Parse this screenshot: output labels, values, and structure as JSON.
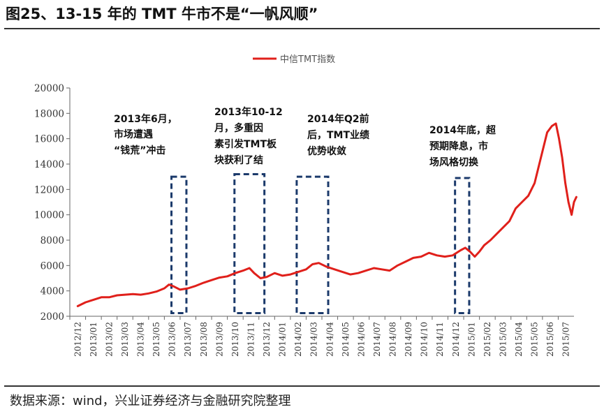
{
  "figure": {
    "title": "图25、13-15 年的 TMT 牛市不是“一帆风顺”",
    "source": "数据来源：wind，兴业证券经济与金融研究院整理"
  },
  "colors": {
    "line": "#e0201b",
    "box": "#1b3a6b"
  },
  "chart_data": {
    "type": "line",
    "title": "",
    "xlabel": "",
    "ylabel": "",
    "ylim": [
      2000,
      20000
    ],
    "yticks": [
      2000,
      4000,
      6000,
      8000,
      10000,
      12000,
      14000,
      16000,
      18000,
      20000
    ],
    "grid": false,
    "legend_position": "top-center",
    "categories": [
      "2012/12",
      "2013/01",
      "2013/02",
      "2013/03",
      "2013/04",
      "2013/05",
      "2013/06",
      "2013/07",
      "2013/08",
      "2013/09",
      "2013/10",
      "2013/11",
      "2013/12",
      "2014/01",
      "2014/02",
      "2014/03",
      "2014/04",
      "2014/05",
      "2014/06",
      "2014/07",
      "2014/08",
      "2014/09",
      "2014/10",
      "2014/11",
      "2014/12",
      "2015/01",
      "2015/02",
      "2015/03",
      "2015/04",
      "2015/05",
      "2015/06",
      "2015/07"
    ],
    "series": [
      {
        "name": "中信TMT指数",
        "x": [
          0,
          0.5,
          1,
          1.5,
          2,
          2.5,
          3,
          3.5,
          4,
          4.5,
          5,
          5.5,
          5.8,
          6.1,
          6.5,
          7,
          7.5,
          8,
          8.5,
          9,
          9.5,
          10,
          10.5,
          10.9,
          11.2,
          11.6,
          12,
          12.5,
          13,
          13.5,
          14,
          14.5,
          14.9,
          15.3,
          15.8,
          16.3,
          16.8,
          17.3,
          17.8,
          18.3,
          18.8,
          19.3,
          19.8,
          20.3,
          20.8,
          21.3,
          21.8,
          22.3,
          22.8,
          23.3,
          23.8,
          24.3,
          24.6,
          24.9,
          25.2,
          25.5,
          25.8,
          26.2,
          26.6,
          27,
          27.4,
          27.8,
          28.2,
          28.6,
          29,
          29.4,
          29.8,
          30.1,
          30.35,
          30.55,
          30.75,
          30.95,
          31.15,
          31.35,
          31.5,
          31.65
        ],
        "values": [
          2800,
          3100,
          3300,
          3500,
          3500,
          3650,
          3700,
          3750,
          3700,
          3800,
          3950,
          4200,
          4500,
          4350,
          4100,
          4200,
          4400,
          4650,
          4850,
          5050,
          5150,
          5400,
          5600,
          5800,
          5400,
          5000,
          5100,
          5400,
          5200,
          5300,
          5500,
          5700,
          6100,
          6200,
          5900,
          5700,
          5500,
          5300,
          5400,
          5600,
          5800,
          5700,
          5600,
          6000,
          6300,
          6600,
          6700,
          7000,
          6800,
          6700,
          6800,
          7200,
          7400,
          7100,
          6700,
          7100,
          7600,
          8000,
          8500,
          9000,
          9500,
          10500,
          11000,
          11500,
          12500,
          14500,
          16500,
          17000,
          17200,
          16000,
          14500,
          12500,
          11000,
          10000,
          11000,
          11400
        ]
      }
    ],
    "annotations": [
      "2013年6月，",
      "市场遭遇",
      "“钱荒”冲击",
      "2013年10-12",
      "月，多重因",
      "素引发TMT板",
      "块获利了结",
      "2014年Q2前",
      "后，TMT业绩",
      "优势收敛",
      "2014年底，超",
      "预期降息，市",
      "场风格切换"
    ]
  }
}
